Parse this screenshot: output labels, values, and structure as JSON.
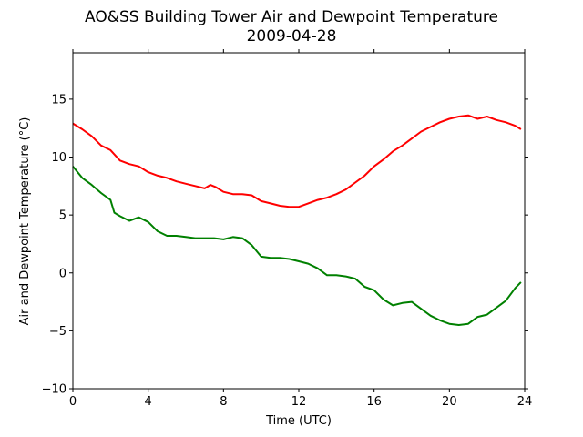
{
  "chart_data": {
    "type": "line",
    "title": "AO&SS Building Tower Air and Dewpoint Temperature",
    "subtitle": "2009-04-28",
    "xlabel": "Time (UTC)",
    "ylabel": "Air and Dewpoint Temperature (°C)",
    "xlim": [
      0,
      24
    ],
    "ylim": [
      -10,
      19
    ],
    "xticks": [
      0,
      4,
      8,
      12,
      16,
      20,
      24
    ],
    "yticks": [
      -10,
      -5,
      0,
      5,
      10,
      15
    ],
    "grid": false,
    "series": [
      {
        "color": "#ff0000",
        "x": [
          0,
          0.5,
          1,
          1.5,
          2,
          2.5,
          3,
          3.5,
          4,
          4.5,
          5,
          5.5,
          6,
          6.5,
          7,
          7.3,
          7.6,
          8,
          8.5,
          9,
          9.5,
          10,
          10.5,
          11,
          11.5,
          12,
          12.5,
          13,
          13.5,
          14,
          14.5,
          15,
          15.5,
          16,
          16.5,
          17,
          17.5,
          18,
          18.5,
          19,
          19.5,
          20,
          20.5,
          21,
          21.5,
          22,
          22.5,
          23,
          23.5,
          23.8
        ],
        "y": [
          12.9,
          12.4,
          11.8,
          11.0,
          10.6,
          9.7,
          9.4,
          9.2,
          8.7,
          8.4,
          8.2,
          7.9,
          7.7,
          7.5,
          7.3,
          7.6,
          7.4,
          7.0,
          6.8,
          6.8,
          6.7,
          6.2,
          6.0,
          5.8,
          5.7,
          5.7,
          6.0,
          6.3,
          6.5,
          6.8,
          7.2,
          7.8,
          8.4,
          9.2,
          9.8,
          10.5,
          11.0,
          11.6,
          12.2,
          12.6,
          13.0,
          13.3,
          13.5,
          13.6,
          13.3,
          13.5,
          13.2,
          13.0,
          12.7,
          12.4
        ]
      },
      {
        "color": "#008000",
        "x": [
          0,
          0.5,
          1,
          1.5,
          2,
          2.2,
          2.5,
          3,
          3.5,
          4,
          4.5,
          5,
          5.5,
          6,
          6.5,
          7,
          7.5,
          8,
          8.5,
          9,
          9.5,
          10,
          10.5,
          11,
          11.5,
          12,
          12.5,
          13,
          13.5,
          14,
          14.5,
          15,
          15.5,
          16,
          16.5,
          17,
          17.5,
          18,
          18.5,
          19,
          19.5,
          20,
          20.5,
          21,
          21.5,
          22,
          22.5,
          23,
          23.5,
          23.8
        ],
        "y": [
          9.2,
          8.2,
          7.6,
          6.9,
          6.3,
          5.2,
          4.9,
          4.5,
          4.8,
          4.4,
          3.6,
          3.2,
          3.2,
          3.1,
          3.0,
          3.0,
          3.0,
          2.9,
          3.1,
          3.0,
          2.4,
          1.4,
          1.3,
          1.3,
          1.2,
          1.0,
          0.8,
          0.4,
          -0.2,
          -0.2,
          -0.3,
          -0.5,
          -1.2,
          -1.5,
          -2.3,
          -2.8,
          -2.6,
          -2.5,
          -3.1,
          -3.7,
          -4.1,
          -4.4,
          -4.5,
          -4.4,
          -3.8,
          -3.6,
          -3.0,
          -2.4,
          -1.3,
          -0.8
        ]
      }
    ]
  }
}
